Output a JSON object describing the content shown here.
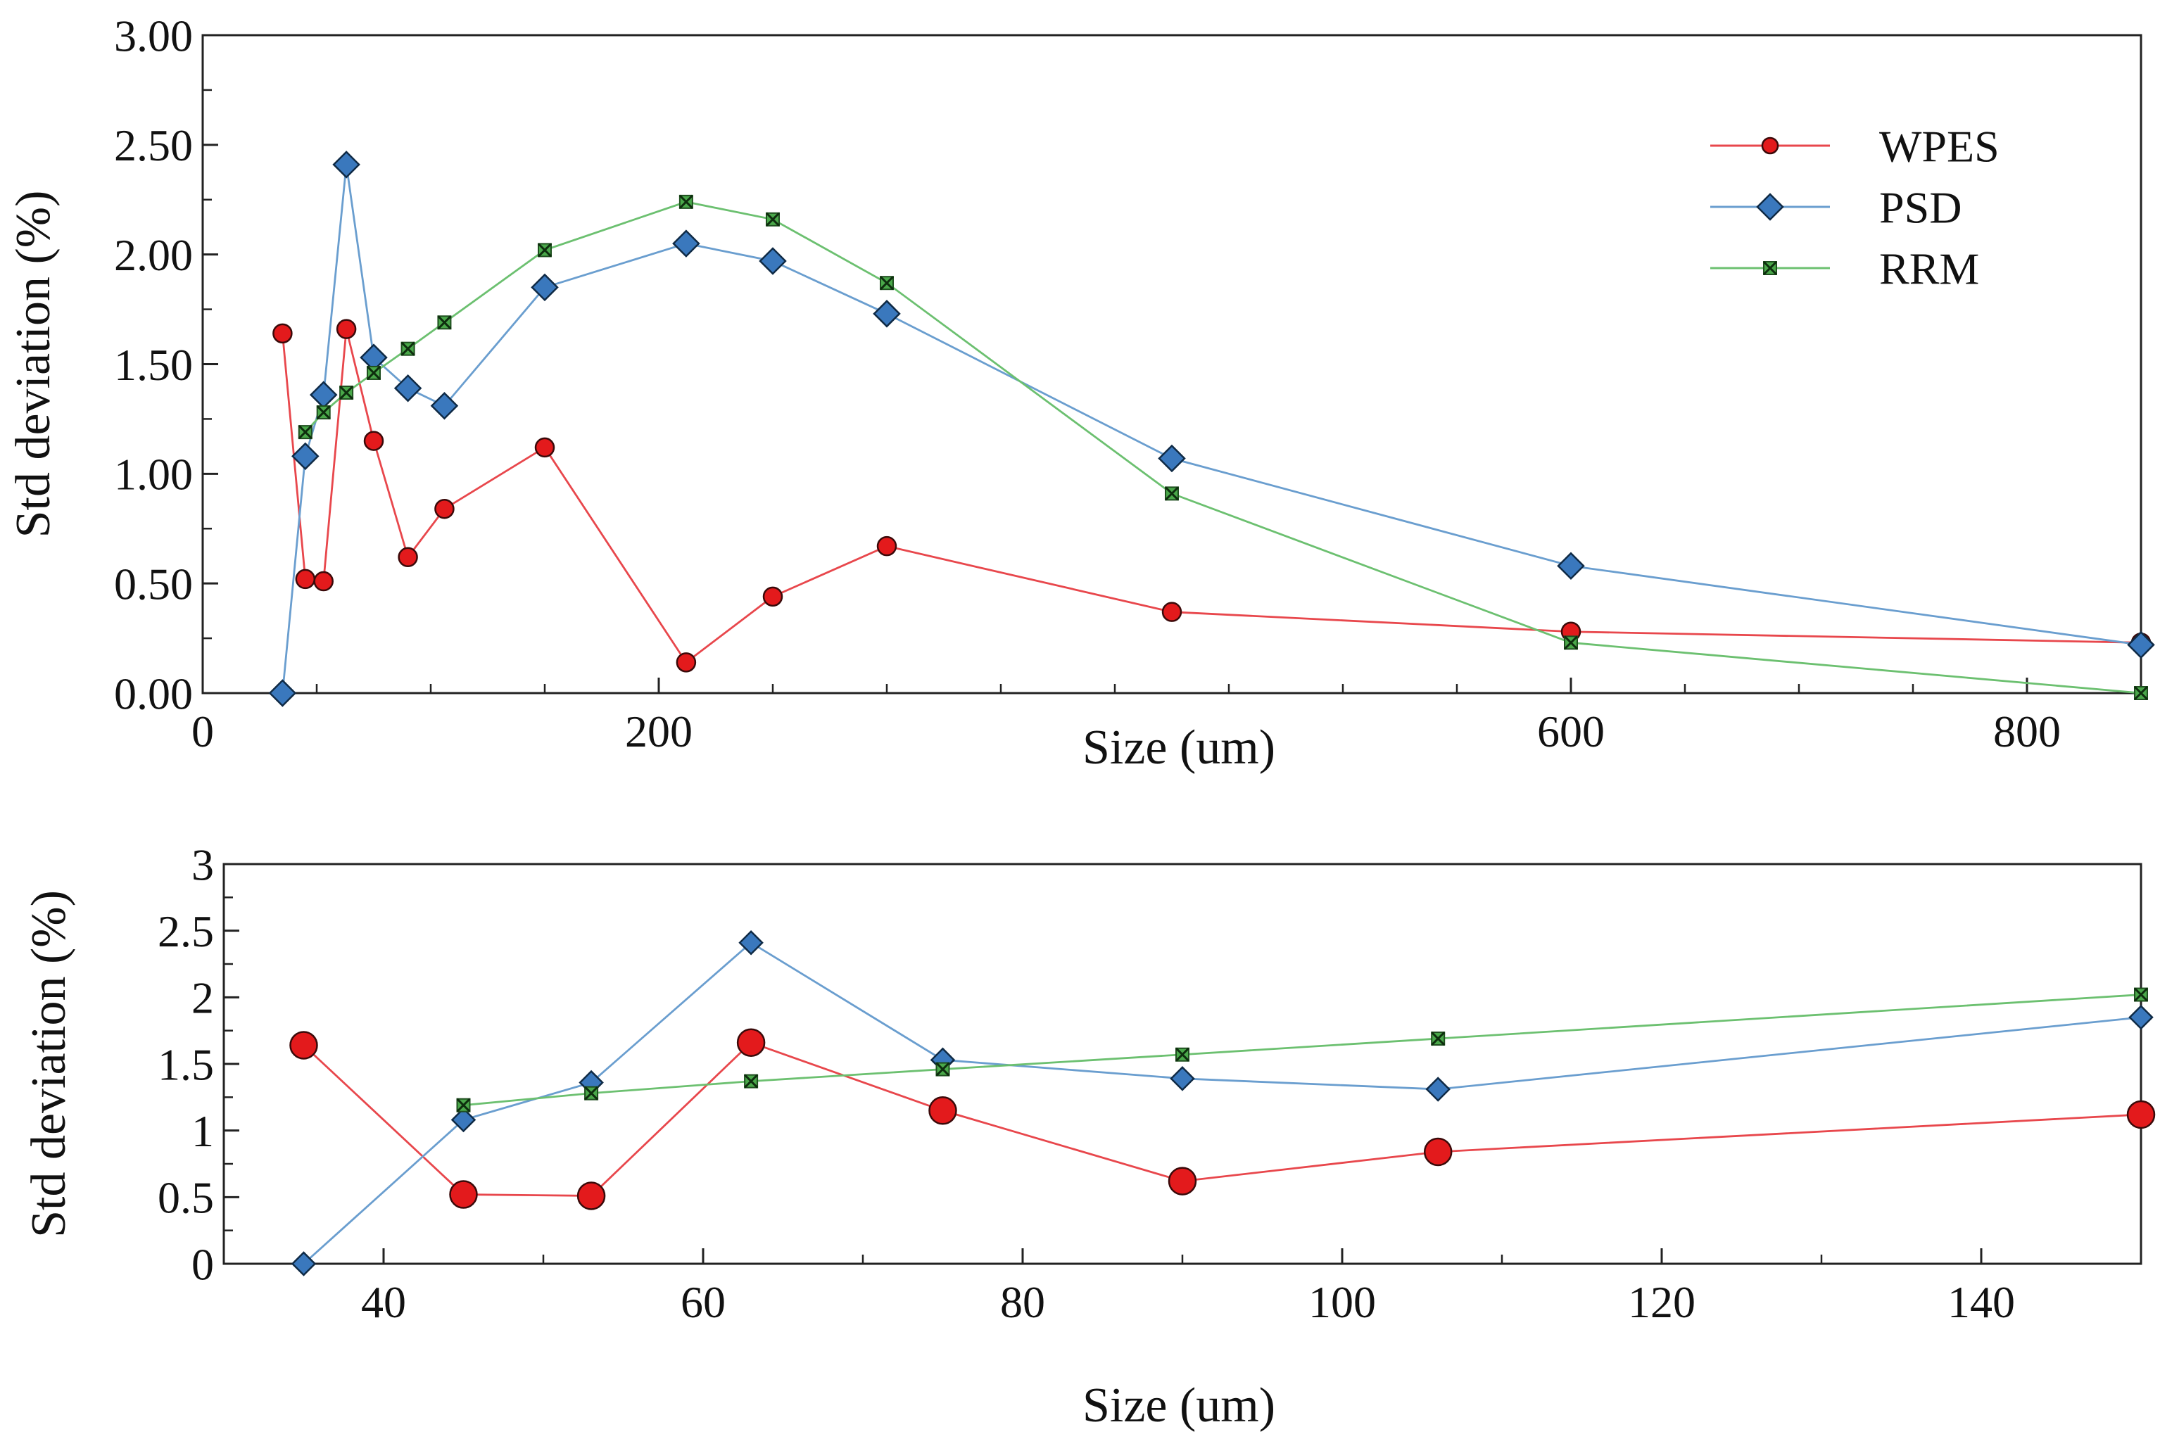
{
  "colors": {
    "wpes_line": "#e8474c",
    "wpes_marker": "#e31a1c",
    "psd_line": "#6a9ecf",
    "psd_marker": "#3a78bd",
    "rrm_line": "#6cc070",
    "rrm_marker": "#4aa84a",
    "axis": "#222222"
  },
  "chart_data": [
    {
      "type": "line",
      "title": "",
      "xlabel": "Size (um)",
      "ylabel": "Std deviation (%)",
      "xlim": [
        0,
        850
      ],
      "ylim": [
        0,
        3
      ],
      "x_tick_labels": [
        {
          "value": 0,
          "label": "0"
        },
        {
          "value": 200,
          "label": "200"
        },
        {
          "value": 600,
          "label": "600"
        },
        {
          "value": 800,
          "label": "800"
        }
      ],
      "x_minor_ticks": [
        50,
        100,
        150,
        250,
        300,
        350,
        400,
        450,
        500,
        550,
        650,
        700,
        750,
        800
      ],
      "y_tick_labels": [
        {
          "value": 0,
          "label": "0.00"
        },
        {
          "value": 0.5,
          "label": "0.50"
        },
        {
          "value": 1,
          "label": "1.00"
        },
        {
          "value": 1.5,
          "label": "1.50"
        },
        {
          "value": 2,
          "label": "2.00"
        },
        {
          "value": 2.5,
          "label": "2.50"
        },
        {
          "value": 3,
          "label": "3.00"
        }
      ],
      "legend_position": "top-right",
      "series": [
        {
          "name": "WPES",
          "marker": "circle",
          "x": [
            35,
            45,
            53,
            63,
            75,
            90,
            106,
            150,
            212,
            250,
            300,
            425,
            600,
            850
          ],
          "values": [
            1.64,
            0.52,
            0.51,
            1.66,
            1.15,
            0.62,
            0.84,
            1.12,
            0.14,
            0.44,
            0.67,
            0.37,
            0.28,
            0.23
          ]
        },
        {
          "name": "PSD",
          "marker": "diamond",
          "x": [
            35,
            45,
            53,
            63,
            75,
            90,
            106,
            150,
            212,
            250,
            300,
            425,
            600,
            850
          ],
          "values": [
            0.0,
            1.08,
            1.36,
            2.41,
            1.53,
            1.39,
            1.31,
            1.85,
            2.05,
            1.97,
            1.73,
            1.07,
            0.58,
            0.22
          ]
        },
        {
          "name": "RRM",
          "marker": "x-square",
          "x": [
            45,
            53,
            63,
            75,
            90,
            106,
            150,
            212,
            250,
            300,
            425,
            600,
            850
          ],
          "values": [
            1.19,
            1.28,
            1.37,
            1.46,
            1.57,
            1.69,
            2.02,
            2.24,
            2.16,
            1.87,
            0.91,
            0.23,
            0.0
          ]
        }
      ]
    },
    {
      "type": "line",
      "title": "",
      "xlabel": "Size (um)",
      "ylabel": "Std deviation (%)",
      "xlim": [
        30,
        150
      ],
      "ylim": [
        0,
        3
      ],
      "x_tick_labels": [
        {
          "value": 40,
          "label": "40"
        },
        {
          "value": 60,
          "label": "60"
        },
        {
          "value": 80,
          "label": "80"
        },
        {
          "value": 100,
          "label": "100"
        },
        {
          "value": 120,
          "label": "120"
        },
        {
          "value": 140,
          "label": "140"
        }
      ],
      "x_minor_ticks": [
        50,
        70,
        90,
        110,
        130
      ],
      "y_tick_labels": [
        {
          "value": 0,
          "label": "0"
        },
        {
          "value": 0.5,
          "label": "0.5"
        },
        {
          "value": 1,
          "label": "1"
        },
        {
          "value": 1.5,
          "label": "1.5"
        },
        {
          "value": 2,
          "label": "2"
        },
        {
          "value": 2.5,
          "label": "2.5"
        },
        {
          "value": 3,
          "label": "3"
        }
      ],
      "series": [
        {
          "name": "WPES",
          "marker": "circle",
          "x": [
            35,
            45,
            53,
            63,
            75,
            90,
            106,
            150
          ],
          "values": [
            1.64,
            0.52,
            0.51,
            1.66,
            1.15,
            0.62,
            0.84,
            1.12
          ]
        },
        {
          "name": "PSD",
          "marker": "diamond",
          "x": [
            35,
            45,
            53,
            63,
            75,
            90,
            106,
            150
          ],
          "values": [
            0.0,
            1.08,
            1.36,
            2.41,
            1.53,
            1.39,
            1.31,
            1.85
          ]
        },
        {
          "name": "RRM",
          "marker": "x-square",
          "x": [
            45,
            53,
            63,
            75,
            90,
            106,
            150
          ],
          "values": [
            1.19,
            1.28,
            1.37,
            1.46,
            1.57,
            1.69,
            2.02
          ]
        }
      ]
    }
  ]
}
